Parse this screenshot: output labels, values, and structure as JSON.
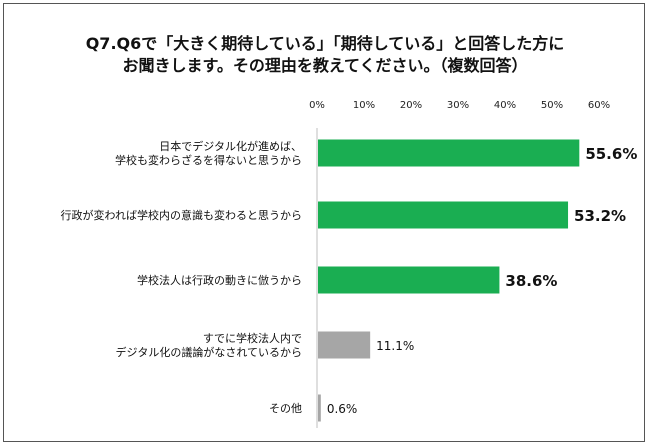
{
  "title_lines": [
    "Q7.Q6で「大きく期待している」「期待している」と回答した方に",
    "お聞きします。その理由を教えてください。（複数回答）"
  ],
  "chart_data": {
    "type": "bar",
    "orientation": "horizontal",
    "title": "Q7.Q6で「大きく期待している」「期待している」と回答した方に お聞きします。その理由を教えてください。（複数回答）",
    "categories": [
      [
        "日本でデジタル化が進めば、",
        "学校も変わらざるを得ないと思うから"
      ],
      [
        "行政が変われば学校内の意識も変わると思うから"
      ],
      [
        "学校法人は行政の動きに倣うから"
      ],
      [
        "すでに学校法人内で",
        "デジタル化の議論がなされているから"
      ],
      [
        "その他"
      ]
    ],
    "values": [
      55.6,
      53.2,
      38.6,
      11.1,
      0.6
    ],
    "value_labels": [
      "55.6%",
      "53.2%",
      "38.6%",
      "11.1%",
      "0.6%"
    ],
    "bar_colors": [
      "#1aae52",
      "#1aae52",
      "#1aae52",
      "#a6a6a6",
      "#a6a6a6"
    ],
    "ticks": [
      "0%",
      "10%",
      "20%",
      "30%",
      "40%",
      "50%",
      "60%"
    ],
    "tick_values": [
      0,
      10,
      20,
      30,
      40,
      50,
      60
    ],
    "xlim": [
      0,
      60
    ],
    "xlabel": "",
    "ylabel": "",
    "grid": false
  }
}
